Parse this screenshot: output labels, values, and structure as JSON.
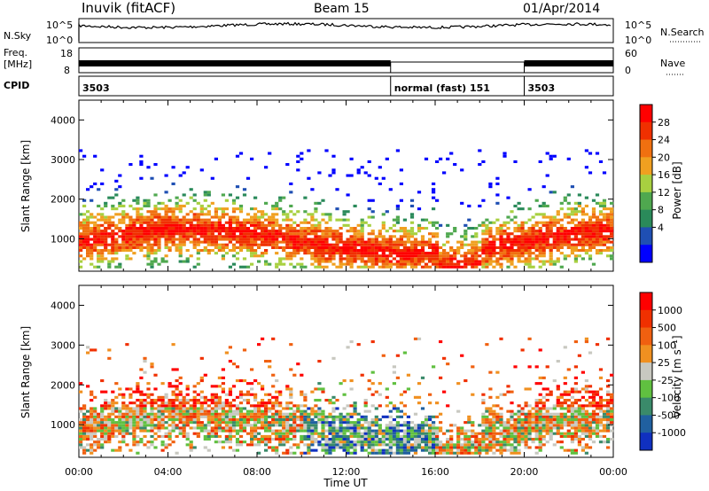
{
  "header": {
    "station": "Inuvik (fitACF)",
    "beam": "Beam 15",
    "date": "01/Apr/2014"
  },
  "strips": {
    "nsky_label": "N.Sky",
    "nsky_ticks": [
      "10^5",
      "10^0"
    ],
    "nsearch_label": "N.Search",
    "nsearch_ticks": [
      "10^5",
      "10^0"
    ],
    "freq_label": "Freq.",
    "freq_unit": "[MHz]",
    "freq_ticks": [
      "18",
      "8"
    ],
    "nave_label": "Nave",
    "nave_ticks": [
      "60",
      "0"
    ],
    "cpid_label": "CPID",
    "cpid_segments": [
      {
        "label": "3503",
        "start_h": 0,
        "end_h": 14
      },
      {
        "label": "normal (fast) 151",
        "start_h": 14,
        "end_h": 20
      },
      {
        "label": "3503",
        "start_h": 20,
        "end_h": 24
      }
    ]
  },
  "chart_data": [
    {
      "type": "heatmap",
      "name": "power-panel",
      "title": "",
      "xlabel": "",
      "ylabel": "Slant Range [km]",
      "xlim": [
        0,
        24
      ],
      "ylim": [
        180,
        4500
      ],
      "yticks": [
        1000,
        2000,
        3000,
        4000
      ],
      "colorbar": {
        "label": "Power [dB]",
        "ticks": [
          "4",
          "8",
          "12",
          "16",
          "20",
          "24",
          "28"
        ],
        "colors": [
          "#0000ff",
          "#1f4fb3",
          "#2a8a5a",
          "#4fa84f",
          "#a8d040",
          "#f0a020",
          "#f07010",
          "#f03000",
          "#ff0000"
        ]
      }
    },
    {
      "type": "heatmap",
      "name": "velocity-panel",
      "title": "",
      "xlabel": "Time UT",
      "ylabel": "Slant Range [km]",
      "xlim": [
        0,
        24
      ],
      "ylim": [
        180,
        4500
      ],
      "yticks": [
        1000,
        2000,
        3000,
        4000
      ],
      "xticks": [
        "00:00",
        "04:00",
        "08:00",
        "12:00",
        "16:00",
        "20:00",
        "00:00"
      ],
      "colorbar": {
        "label": "Velocity [m s⁻¹]",
        "ticks": [
          "1000",
          "500",
          "100",
          "25",
          "-25",
          "-100",
          "-500",
          "-1000"
        ],
        "colors": [
          "#1030c0",
          "#2060a0",
          "#3a8a6a",
          "#60c040",
          "#c8c8c0",
          "#f09020",
          "#f06010",
          "#f03000",
          "#ff0000"
        ]
      }
    }
  ]
}
